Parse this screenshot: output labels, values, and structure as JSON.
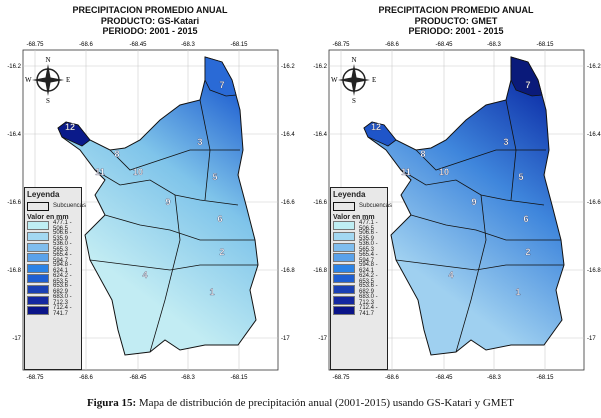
{
  "maps": [
    {
      "title": [
        "PRECIPITACION PROMEDIO ANUAL",
        "PRODUCTO: GS-Katari",
        "PERIODO: 2001 - 2015"
      ],
      "fill": {
        "north": "#1f5fd0",
        "mid": "#7fc4ea",
        "south": "#c2ecf3"
      },
      "sub12": "#0a1a8a",
      "sub7": "#2a6ad6"
    },
    {
      "title": [
        "PRECIPITACION PROMEDIO ANUAL",
        "PRODUCTO: GMET",
        "PERIODO: 2001 - 2015"
      ],
      "fill": {
        "north": "#0d2fa8",
        "mid": "#3f86dc",
        "south": "#9fd0f0"
      },
      "sub12": "#1f55c8",
      "sub7": "#0a1a7a"
    }
  ],
  "x_ticks": [
    "-68.75",
    "-68.6",
    "-68.45",
    "-68.3",
    "-68.15"
  ],
  "y_ticks": [
    "-16.2",
    "-16.4",
    "-16.6",
    "-16.8",
    "-17"
  ],
  "compass": {
    "n": "N",
    "s": "S",
    "e": "E",
    "w": "W"
  },
  "subbasins": [
    "1",
    "2",
    "3",
    "4",
    "5",
    "6",
    "7",
    "8",
    "9",
    "10",
    "11",
    "12"
  ],
  "legend": {
    "title": "Leyenda",
    "sub_label": "Subcuencas",
    "value_title": "Valor en mm",
    "classes": [
      {
        "range": "477.1 - 506.5",
        "color": "#bfeef3"
      },
      {
        "range": "506.6 - 535.9",
        "color": "#a3d8f2"
      },
      {
        "range": "536.0 - 565.3",
        "color": "#7fbdee"
      },
      {
        "range": "565.4 - 594.7",
        "color": "#5aa2ea"
      },
      {
        "range": "594.8 - 624.1",
        "color": "#2b83e6"
      },
      {
        "range": "624.2 - 653.5",
        "color": "#1e5fd2"
      },
      {
        "range": "653.6 - 682.9",
        "color": "#1a40b4"
      },
      {
        "range": "683.0 - 712.3",
        "color": "#1428a0"
      },
      {
        "range": "712.4 - 741.7",
        "color": "#0a1488"
      }
    ]
  },
  "caption": {
    "bold": "Figura 15:",
    "text": " Mapa de distribución de precipitación anual (2001-2015) usando GS-Katari y GMET"
  }
}
